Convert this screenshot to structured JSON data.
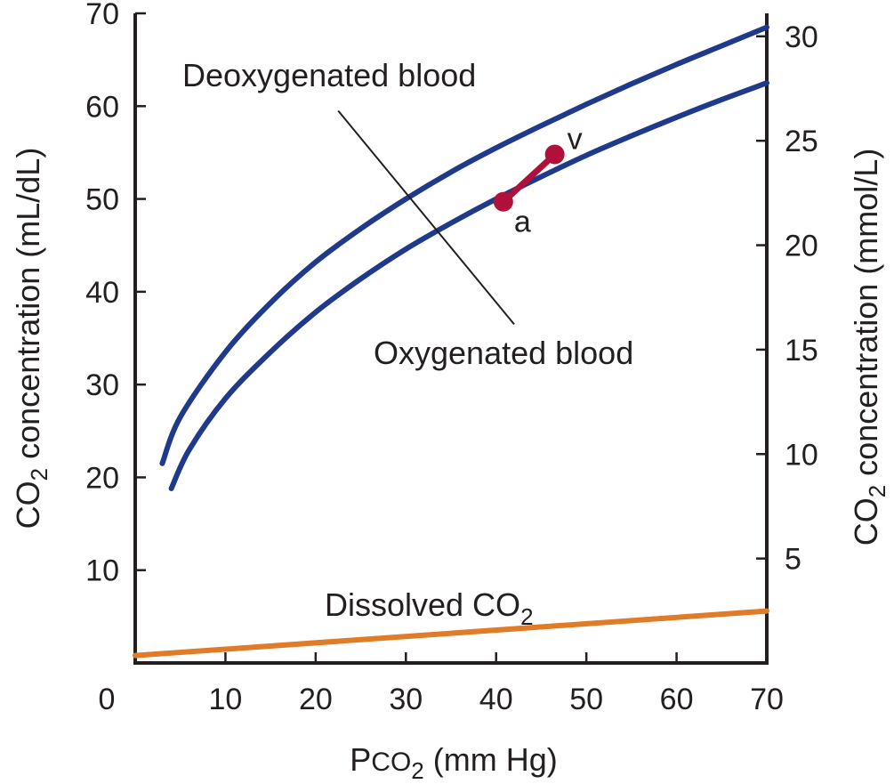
{
  "chart_data": {
    "type": "line",
    "xlabel": {
      "main": "P",
      "small": "CO",
      "sub": "2",
      "tail": " (mm Hg)"
    },
    "ylabel_left": {
      "main": "CO",
      "sub": "2",
      "tail": " concentration (mL/dL)"
    },
    "ylabel_right": {
      "main": "CO",
      "sub": "2",
      "tail": " concentration (mmol/L)"
    },
    "xlim": [
      0,
      70
    ],
    "ylim_left": [
      0,
      70
    ],
    "ylim_right_mmol": [
      0,
      31.1
    ],
    "x_ticks": [
      0,
      10,
      20,
      30,
      40,
      50,
      60,
      70
    ],
    "x_tick_labels": [
      "0",
      "10",
      "20",
      "30",
      "40",
      "50",
      "60",
      "70"
    ],
    "y_left_ticks": [
      10,
      20,
      30,
      40,
      50,
      60,
      70
    ],
    "y_left_tick_labels": [
      "10",
      "20",
      "30",
      "40",
      "50",
      "60",
      "70"
    ],
    "y_right_ticks": [
      5,
      10,
      15,
      20,
      25,
      30
    ],
    "y_right_tick_labels": [
      "5",
      "10",
      "15",
      "20",
      "25",
      "30"
    ],
    "grid": false,
    "series": [
      {
        "name": "Deoxygenated blood",
        "color": "#1f3a8a",
        "x": [
          3,
          5,
          10,
          15,
          20,
          25,
          30,
          35,
          40,
          45,
          50,
          55,
          60,
          65,
          70
        ],
        "y": [
          21.5,
          26.5,
          33.5,
          38.8,
          43.2,
          46.8,
          50.0,
          52.9,
          55.5,
          57.9,
          60.2,
          62.4,
          64.5,
          66.5,
          68.5
        ]
      },
      {
        "name": "Oxygenated blood",
        "color": "#1f3a8a",
        "x": [
          4,
          6,
          10,
          15,
          20,
          25,
          30,
          35,
          40,
          45,
          50,
          55,
          60,
          65,
          70
        ],
        "y": [
          18.8,
          23.0,
          28.5,
          33.5,
          37.8,
          41.4,
          44.6,
          47.4,
          50.0,
          52.4,
          54.7,
          56.8,
          58.8,
          60.7,
          62.5
        ]
      },
      {
        "name": "Dissolved CO",
        "name_sub": "2",
        "color": "#e07b27",
        "x": [
          0,
          70
        ],
        "y": [
          0.8,
          5.6
        ]
      }
    ],
    "points": [
      {
        "label": "a",
        "x": 40.8,
        "y": 49.7,
        "color": "#b0103a"
      },
      {
        "label": "v",
        "x": 46.5,
        "y": 54.8,
        "color": "#b0103a"
      }
    ],
    "leaders": [
      {
        "from": [
          22.5,
          59.5
        ],
        "to": [
          42,
          36.5
        ]
      }
    ]
  }
}
